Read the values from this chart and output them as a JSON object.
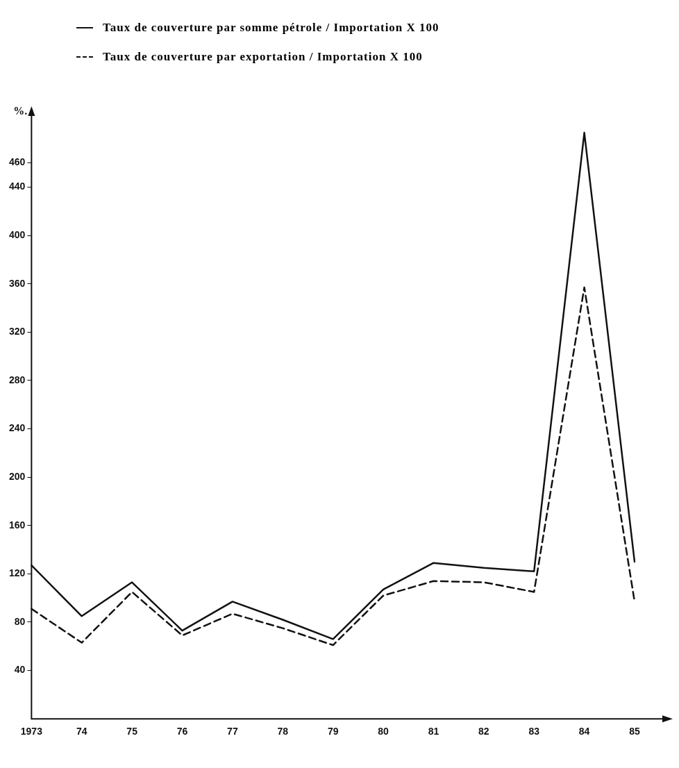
{
  "chart_data": {
    "type": "line",
    "ylabel": "%.",
    "categories": [
      "1973",
      "74",
      "75",
      "76",
      "77",
      "78",
      "79",
      "80",
      "81",
      "82",
      "83",
      "84",
      "85"
    ],
    "series": [
      {
        "name": "Taux de couverture par somme pétrole / Importation X 100",
        "color": "#111111",
        "line_style": "solid",
        "values": [
          127,
          85,
          113,
          73,
          97,
          82,
          66,
          107,
          129,
          125,
          122,
          485,
          130
        ]
      },
      {
        "name": "Taux de couverture par exportation / Importation X 100",
        "color": "#111111",
        "line_style": "dashed",
        "values": [
          91,
          63,
          105,
          69,
          87,
          75,
          61,
          102,
          114,
          113,
          105,
          357,
          97
        ]
      }
    ],
    "ylim": [
      0,
      500
    ],
    "yticks": [
      40,
      80,
      120,
      160,
      200,
      240,
      280,
      320,
      360,
      400,
      440,
      460
    ],
    "grid": false,
    "legend": "top",
    "marker": "none"
  }
}
